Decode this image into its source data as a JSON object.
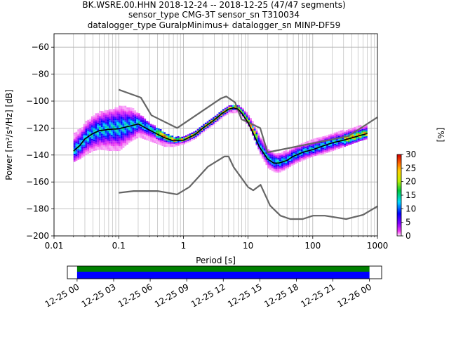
{
  "title_lines": [
    "BK.WSRE.00.HHN   2018-12-24 -- 2018-12-25  (47/47 segments)",
    "sensor_type CMG-3T sensor_sn T310034",
    "datalogger_type GuralpMinimus+ datalogger_sn MINP-DF59"
  ],
  "chart_data": [
    {
      "type": "heatmap",
      "xlabel": "Period [s]",
      "ylabel": "Power [m²/s⁴/Hz] [dB]",
      "xscale": "log",
      "xlim": [
        0.01,
        1000
      ],
      "ylim": [
        -200,
        -50
      ],
      "x_ticks": [
        0.01,
        0.1,
        1,
        10,
        100,
        1000
      ],
      "x_tick_labels": [
        "0.01",
        "0.1",
        "1",
        "10",
        "100",
        "1000"
      ],
      "y_ticks": [
        -200,
        -180,
        -160,
        -140,
        -120,
        -100,
        -80,
        -60
      ],
      "grid": true,
      "colorbar": {
        "label": "[%]",
        "range": [
          0,
          30
        ],
        "ticks": [
          0,
          5,
          10,
          15,
          20,
          25,
          30
        ]
      },
      "curves": [
        {
          "role": "high-noise-model",
          "color": "#666666",
          "x": [
            0.1,
            0.22,
            0.32,
            0.8,
            3.8,
            4.6,
            6.3,
            7.9,
            15.4,
            20,
            354.8,
            1000
          ],
          "y": [
            -91.5,
            -97.4,
            -110.5,
            -120,
            -98,
            -96.5,
            -101,
            -113.5,
            -120,
            -138,
            -126,
            -112
          ]
        },
        {
          "role": "low-noise-model",
          "color": "#666666",
          "x": [
            0.1,
            0.17,
            0.4,
            0.8,
            1.24,
            2.4,
            4.3,
            5,
            6,
            10,
            12,
            15.6,
            21.9,
            31.6,
            45,
            70,
            101,
            154,
            328,
            600,
            1000
          ],
          "y": [
            -168,
            -166.7,
            -166.7,
            -169.2,
            -163.7,
            -148.6,
            -141.1,
            -141.1,
            -149,
            -163.8,
            -166.2,
            -162.1,
            -177.5,
            -185,
            -187.5,
            -187.5,
            -185,
            -185,
            -187.5,
            -184.4,
            -178
          ]
        },
        {
          "role": "mode",
          "color": "#000000",
          "x": [
            0.02,
            0.025,
            0.03,
            0.04,
            0.05,
            0.07,
            0.1,
            0.15,
            0.2,
            0.3,
            0.5,
            0.7,
            1,
            1.5,
            2,
            3,
            4,
            5,
            6,
            7,
            8,
            10,
            12,
            15,
            20,
            25,
            30,
            40,
            50,
            70,
            100,
            150,
            200,
            300,
            500,
            700
          ],
          "y": [
            -137,
            -133,
            -128,
            -124,
            -122,
            -121,
            -120.5,
            -118.5,
            -117,
            -121.5,
            -127,
            -129.5,
            -129,
            -125,
            -120,
            -114,
            -109,
            -106,
            -105,
            -106,
            -109,
            -116,
            -124,
            -134,
            -143,
            -146,
            -146,
            -144,
            -141,
            -138,
            -136,
            -133,
            -131,
            -129,
            -126,
            -124
          ]
        }
      ],
      "band_upper": {
        "x": [
          0.02,
          0.025,
          0.03,
          0.04,
          0.05,
          0.07,
          0.1,
          0.15,
          0.2,
          0.3,
          0.5,
          0.7,
          1,
          1.5,
          2,
          3,
          4,
          5,
          6,
          7,
          8,
          10,
          12,
          15,
          20,
          25,
          30,
          40,
          50,
          70,
          100,
          150,
          200,
          300,
          500,
          700
        ],
        "y": [
          -124,
          -121,
          -116,
          -111,
          -108,
          -107,
          -104,
          -105,
          -110,
          -117,
          -124,
          -127,
          -127,
          -122,
          -117,
          -111,
          -106,
          -104,
          -104,
          -104,
          -106,
          -111,
          -117,
          -127,
          -136,
          -139,
          -139,
          -137,
          -134,
          -132,
          -129,
          -126,
          -124,
          -122,
          -119,
          -118
        ]
      },
      "band_lower": {
        "x": [
          0.02,
          0.025,
          0.03,
          0.04,
          0.05,
          0.07,
          0.1,
          0.15,
          0.2,
          0.3,
          0.5,
          0.7,
          1,
          1.5,
          2,
          3,
          4,
          5,
          6,
          7,
          8,
          10,
          12,
          15,
          20,
          25,
          30,
          40,
          50,
          70,
          100,
          150,
          200,
          300,
          500,
          700
        ],
        "y": [
          -145,
          -143,
          -140,
          -137,
          -136,
          -137,
          -137,
          -130,
          -127,
          -130,
          -134,
          -134,
          -132,
          -128,
          -123,
          -117,
          -112,
          -109,
          -109,
          -109,
          -112,
          -119,
          -128,
          -140,
          -150,
          -153,
          -153,
          -150,
          -147,
          -144,
          -141,
          -139,
          -137,
          -134,
          -130,
          -128
        ]
      }
    },
    {
      "type": "timeline",
      "x_tick_labels": [
        "12-25 00",
        "12-25 03",
        "12-25 06",
        "12-25 09",
        "12-25 12",
        "12-25 15",
        "12-25 18",
        "12-25 21",
        "12-26 00"
      ],
      "xlim_hours": [
        -0.8,
        25
      ],
      "bands": [
        {
          "name": "",
          "color": "#008000",
          "start_hour": 0,
          "end_hour": 24
        },
        {
          "name": "",
          "color": "#0000ff",
          "start_hour": 0,
          "end_hour": 24
        }
      ]
    }
  ]
}
